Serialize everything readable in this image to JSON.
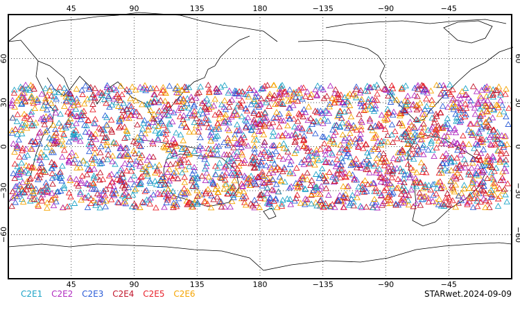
{
  "map": {
    "lon_ticks": [
      {
        "lon": 45,
        "label": "45"
      },
      {
        "lon": 90,
        "label": "90"
      },
      {
        "lon": 135,
        "label": "135"
      },
      {
        "lon": 180,
        "label": "180"
      },
      {
        "lon": 225,
        "label": "−135"
      },
      {
        "lon": 270,
        "label": "−90"
      },
      {
        "lon": 315,
        "label": "−45"
      }
    ],
    "lat_ticks": [
      {
        "lat": 60,
        "label": "60"
      },
      {
        "lat": 30,
        "label": "30"
      },
      {
        "lat": 0,
        "label": "0"
      },
      {
        "lat": -30,
        "label": "−30"
      },
      {
        "lat": -60,
        "label": "−60"
      }
    ],
    "lon_range": [
      0,
      360
    ],
    "lat_range": [
      -90,
      90
    ],
    "grid": "dotted",
    "marker": "open-triangle",
    "observation_lat_band": [
      -42,
      42
    ]
  },
  "legend": [
    {
      "label": "C2E1",
      "color": "#1ba3c6"
    },
    {
      "label": "C2E2",
      "color": "#b02ac0"
    },
    {
      "label": "C2E3",
      "color": "#2a5bd7"
    },
    {
      "label": "C2E4",
      "color": "#c0142a"
    },
    {
      "label": "C2E5",
      "color": "#e8202a"
    },
    {
      "label": "C2E6",
      "color": "#f5a400"
    }
  ],
  "stamp": "STARwet.2024-09-09"
}
